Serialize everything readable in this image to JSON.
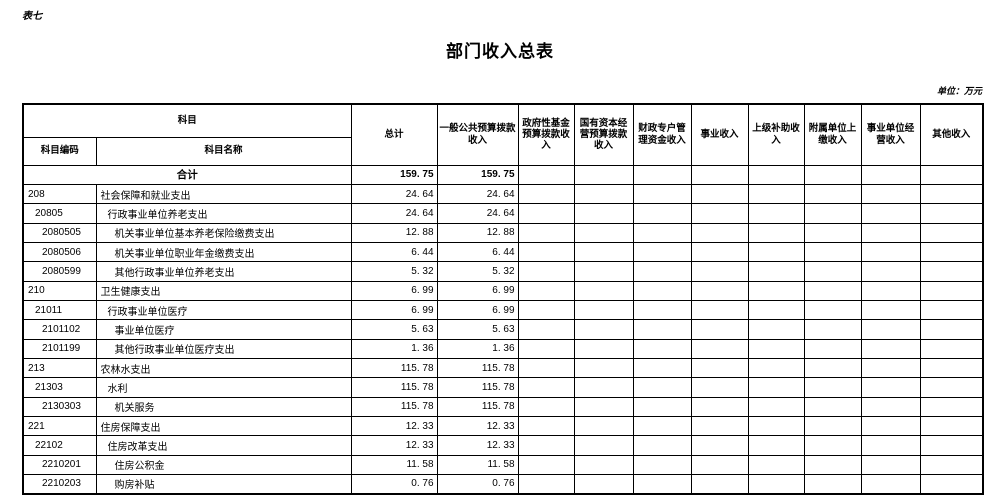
{
  "page": {
    "doc_tag": "表七",
    "title": "部门收入总表",
    "unit_label": "单位：万元"
  },
  "table": {
    "header": {
      "subject": "科目",
      "subject_code": "科目编码",
      "subject_name": "科目名称",
      "value_columns": [
        "总计",
        "一般公共预算拨款收入",
        "政府性基金预算拨款收入",
        "国有资本经营预算拨款收入",
        "财政专户管理资金收入",
        "事业收入",
        "上级补助收入",
        "附属单位上缴收入",
        "事业单位经营收入",
        "其他收入"
      ]
    },
    "rows": [
      {
        "code": "",
        "name": "合计",
        "level": 0,
        "bold": true,
        "values": [
          "159. 75",
          "159. 75",
          "",
          "",
          "",
          "",
          "",
          "",
          "",
          ""
        ]
      },
      {
        "code": "208",
        "name": "社会保障和就业支出",
        "level": 1,
        "bold": false,
        "values": [
          "24. 64",
          "24. 64",
          "",
          "",
          "",
          "",
          "",
          "",
          "",
          ""
        ]
      },
      {
        "code": "20805",
        "name": "行政事业单位养老支出",
        "level": 2,
        "bold": false,
        "values": [
          "24. 64",
          "24. 64",
          "",
          "",
          "",
          "",
          "",
          "",
          "",
          ""
        ]
      },
      {
        "code": "2080505",
        "name": "机关事业单位基本养老保险缴费支出",
        "level": 3,
        "bold": false,
        "values": [
          "12. 88",
          "12. 88",
          "",
          "",
          "",
          "",
          "",
          "",
          "",
          ""
        ]
      },
      {
        "code": "2080506",
        "name": "机关事业单位职业年金缴费支出",
        "level": 3,
        "bold": false,
        "values": [
          "6. 44",
          "6. 44",
          "",
          "",
          "",
          "",
          "",
          "",
          "",
          ""
        ]
      },
      {
        "code": "2080599",
        "name": "其他行政事业单位养老支出",
        "level": 3,
        "bold": false,
        "values": [
          "5. 32",
          "5. 32",
          "",
          "",
          "",
          "",
          "",
          "",
          "",
          ""
        ]
      },
      {
        "code": "210",
        "name": "卫生健康支出",
        "level": 1,
        "bold": false,
        "values": [
          "6. 99",
          "6. 99",
          "",
          "",
          "",
          "",
          "",
          "",
          "",
          ""
        ]
      },
      {
        "code": "21011",
        "name": "行政事业单位医疗",
        "level": 2,
        "bold": false,
        "values": [
          "6. 99",
          "6. 99",
          "",
          "",
          "",
          "",
          "",
          "",
          "",
          ""
        ]
      },
      {
        "code": "2101102",
        "name": "事业单位医疗",
        "level": 3,
        "bold": false,
        "values": [
          "5. 63",
          "5. 63",
          "",
          "",
          "",
          "",
          "",
          "",
          "",
          ""
        ]
      },
      {
        "code": "2101199",
        "name": "其他行政事业单位医疗支出",
        "level": 3,
        "bold": false,
        "values": [
          "1. 36",
          "1. 36",
          "",
          "",
          "",
          "",
          "",
          "",
          "",
          ""
        ]
      },
      {
        "code": "213",
        "name": "农林水支出",
        "level": 1,
        "bold": false,
        "values": [
          "115. 78",
          "115. 78",
          "",
          "",
          "",
          "",
          "",
          "",
          "",
          ""
        ]
      },
      {
        "code": "21303",
        "name": "水利",
        "level": 2,
        "bold": false,
        "values": [
          "115. 78",
          "115. 78",
          "",
          "",
          "",
          "",
          "",
          "",
          "",
          ""
        ]
      },
      {
        "code": "2130303",
        "name": "机关服务",
        "level": 3,
        "bold": false,
        "values": [
          "115. 78",
          "115. 78",
          "",
          "",
          "",
          "",
          "",
          "",
          "",
          ""
        ]
      },
      {
        "code": "221",
        "name": "住房保障支出",
        "level": 1,
        "bold": false,
        "values": [
          "12. 33",
          "12. 33",
          "",
          "",
          "",
          "",
          "",
          "",
          "",
          ""
        ]
      },
      {
        "code": "22102",
        "name": "住房改革支出",
        "level": 2,
        "bold": false,
        "values": [
          "12. 33",
          "12. 33",
          "",
          "",
          "",
          "",
          "",
          "",
          "",
          ""
        ]
      },
      {
        "code": "2210201",
        "name": "住房公积金",
        "level": 3,
        "bold": false,
        "values": [
          "11. 58",
          "11. 58",
          "",
          "",
          "",
          "",
          "",
          "",
          "",
          ""
        ]
      },
      {
        "code": "2210203",
        "name": "购房补贴",
        "level": 3,
        "bold": false,
        "values": [
          "0. 76",
          "0. 76",
          "",
          "",
          "",
          "",
          "",
          "",
          "",
          ""
        ]
      }
    ]
  }
}
